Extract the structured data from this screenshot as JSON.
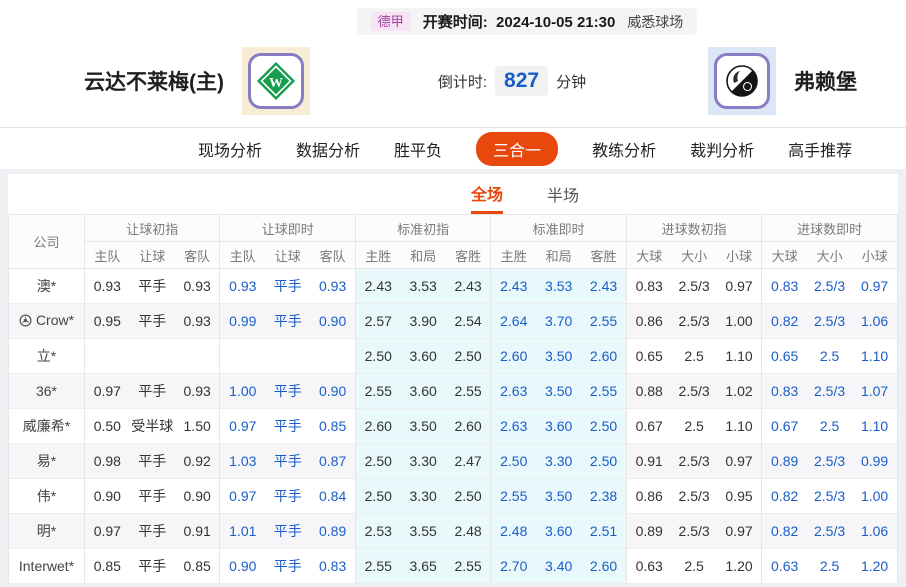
{
  "top_bar": {
    "league": "德甲",
    "kickoff_label": "开赛时间:",
    "kickoff_time": "2024-10-05 21:30",
    "venue": "威悉球场"
  },
  "match": {
    "home_name": "云达不莱梅(主)",
    "away_name": "弗赖堡",
    "countdown_label": "倒计时:",
    "countdown_value": "827",
    "countdown_unit": "分钟"
  },
  "nav": {
    "tabs": [
      {
        "label": "现场分析",
        "active": false
      },
      {
        "label": "数据分析",
        "active": false
      },
      {
        "label": "胜平负",
        "active": false
      },
      {
        "label": "三合一",
        "active": true
      },
      {
        "label": "教练分析",
        "active": false
      },
      {
        "label": "裁判分析",
        "active": false
      },
      {
        "label": "高手推荐",
        "active": false
      }
    ]
  },
  "subtabs": [
    {
      "label": "全场",
      "active": true
    },
    {
      "label": "半场",
      "active": false
    }
  ],
  "table": {
    "company_header": "公司",
    "groups": [
      {
        "key": "handicap_initial",
        "label": "让球初指",
        "cols": [
          "主队",
          "让球",
          "客队"
        ],
        "style": "initial"
      },
      {
        "key": "handicap_live",
        "label": "让球即时",
        "cols": [
          "主队",
          "让球",
          "客队"
        ],
        "style": "live"
      },
      {
        "key": "std_initial",
        "label": "标准初指",
        "cols": [
          "主胜",
          "和局",
          "客胜"
        ],
        "style": "initial cyan"
      },
      {
        "key": "std_live",
        "label": "标准即时",
        "cols": [
          "主胜",
          "和局",
          "客胜"
        ],
        "style": "live cyan"
      },
      {
        "key": "goals_initial",
        "label": "进球数初指",
        "cols": [
          "大球",
          "大小",
          "小球"
        ],
        "style": "initial"
      },
      {
        "key": "goals_live",
        "label": "进球数即时",
        "cols": [
          "大球",
          "大小",
          "小球"
        ],
        "style": "live"
      }
    ],
    "rows": [
      {
        "company": "澳*",
        "icon": false,
        "handicap_initial": [
          "0.93",
          "平手",
          "0.93"
        ],
        "handicap_live": [
          "0.93",
          "平手",
          "0.93"
        ],
        "std_initial": [
          "2.43",
          "3.53",
          "2.43"
        ],
        "std_live": [
          "2.43",
          "3.53",
          "2.43"
        ],
        "goals_initial": [
          "0.83",
          "2.5/3",
          "0.97"
        ],
        "goals_live": [
          "0.83",
          "2.5/3",
          "0.97"
        ]
      },
      {
        "company": "Crow*",
        "icon": true,
        "handicap_initial": [
          "0.95",
          "平手",
          "0.93"
        ],
        "handicap_live": [
          "0.99",
          "平手",
          "0.90"
        ],
        "std_initial": [
          "2.57",
          "3.90",
          "2.54"
        ],
        "std_live": [
          "2.64",
          "3.70",
          "2.55"
        ],
        "goals_initial": [
          "0.86",
          "2.5/3",
          "1.00"
        ],
        "goals_live": [
          "0.82",
          "2.5/3",
          "1.06"
        ]
      },
      {
        "company": "立*",
        "icon": false,
        "handicap_initial": [
          "",
          "",
          ""
        ],
        "handicap_live": [
          "",
          "",
          ""
        ],
        "std_initial": [
          "2.50",
          "3.60",
          "2.50"
        ],
        "std_live": [
          "2.60",
          "3.50",
          "2.60"
        ],
        "goals_initial": [
          "0.65",
          "2.5",
          "1.10"
        ],
        "goals_live": [
          "0.65",
          "2.5",
          "1.10"
        ]
      },
      {
        "company": "36*",
        "icon": false,
        "handicap_initial": [
          "0.97",
          "平手",
          "0.93"
        ],
        "handicap_live": [
          "1.00",
          "平手",
          "0.90"
        ],
        "std_initial": [
          "2.55",
          "3.60",
          "2.55"
        ],
        "std_live": [
          "2.63",
          "3.50",
          "2.55"
        ],
        "goals_initial": [
          "0.88",
          "2.5/3",
          "1.02"
        ],
        "goals_live": [
          "0.83",
          "2.5/3",
          "1.07"
        ]
      },
      {
        "company": "威廉希*",
        "icon": false,
        "handicap_initial": [
          "0.50",
          "受半球",
          "1.50"
        ],
        "handicap_live": [
          "0.97",
          "平手",
          "0.85"
        ],
        "std_initial": [
          "2.60",
          "3.50",
          "2.60"
        ],
        "std_live": [
          "2.63",
          "3.60",
          "2.50"
        ],
        "goals_initial": [
          "0.67",
          "2.5",
          "1.10"
        ],
        "goals_live": [
          "0.67",
          "2.5",
          "1.10"
        ]
      },
      {
        "company": "易*",
        "icon": false,
        "handicap_initial": [
          "0.98",
          "平手",
          "0.92"
        ],
        "handicap_live": [
          "1.03",
          "平手",
          "0.87"
        ],
        "std_initial": [
          "2.50",
          "3.30",
          "2.47"
        ],
        "std_live": [
          "2.50",
          "3.30",
          "2.50"
        ],
        "goals_initial": [
          "0.91",
          "2.5/3",
          "0.97"
        ],
        "goals_live": [
          "0.89",
          "2.5/3",
          "0.99"
        ]
      },
      {
        "company": "伟*",
        "icon": false,
        "handicap_initial": [
          "0.90",
          "平手",
          "0.90"
        ],
        "handicap_live": [
          "0.97",
          "平手",
          "0.84"
        ],
        "std_initial": [
          "2.50",
          "3.30",
          "2.50"
        ],
        "std_live": [
          "2.55",
          "3.50",
          "2.38"
        ],
        "goals_initial": [
          "0.86",
          "2.5/3",
          "0.95"
        ],
        "goals_live": [
          "0.82",
          "2.5/3",
          "1.00"
        ]
      },
      {
        "company": "明*",
        "icon": false,
        "handicap_initial": [
          "0.97",
          "平手",
          "0.91"
        ],
        "handicap_live": [
          "1.01",
          "平手",
          "0.89"
        ],
        "std_initial": [
          "2.53",
          "3.55",
          "2.48"
        ],
        "std_live": [
          "2.48",
          "3.60",
          "2.51"
        ],
        "goals_initial": [
          "0.89",
          "2.5/3",
          "0.97"
        ],
        "goals_live": [
          "0.82",
          "2.5/3",
          "1.06"
        ]
      },
      {
        "company": "Interwet*",
        "icon": false,
        "handicap_initial": [
          "0.85",
          "平手",
          "0.85"
        ],
        "handicap_live": [
          "0.90",
          "平手",
          "0.83"
        ],
        "std_initial": [
          "2.55",
          "3.65",
          "2.55"
        ],
        "std_live": [
          "2.70",
          "3.40",
          "2.60"
        ],
        "goals_initial": [
          "0.63",
          "2.5",
          "1.20"
        ],
        "goals_live": [
          "0.63",
          "2.5",
          "1.20"
        ]
      }
    ]
  },
  "colors": {
    "accent": "#e8480c",
    "live_text": "#1a5dc8",
    "std_column_bg": "#e9f8fb",
    "league_badge_bg": "#f6e3f3",
    "league_badge_text": "#a33fa3",
    "home_logo_bg": "#f8ecd4",
    "away_logo_bg": "#dbe6f6",
    "logo_frame_border": "#8a7cc4"
  }
}
